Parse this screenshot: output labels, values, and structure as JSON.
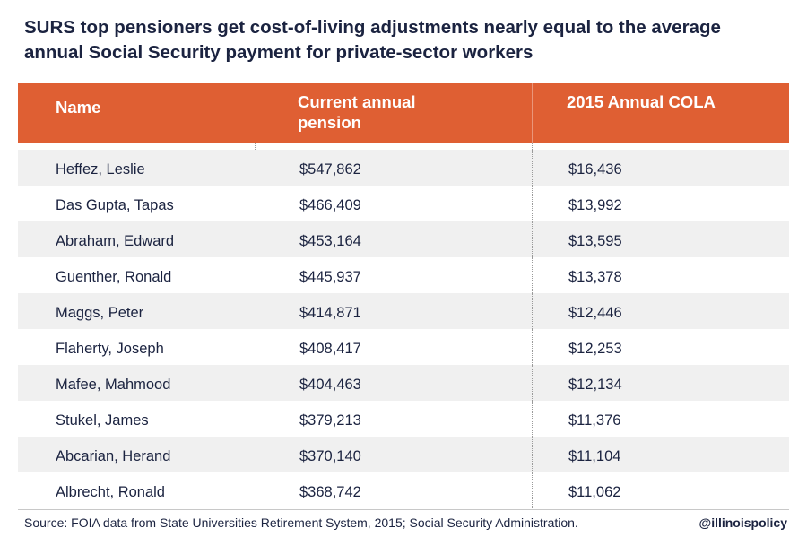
{
  "title_line1": "SURS top pensioners get cost-of-living adjustments nearly equal to the average",
  "title_line2": "annual Social Security payment for private-sector workers",
  "colors": {
    "header_bg": "#df5f33",
    "row_alt": "#f0f0f0",
    "text": "#1b2340"
  },
  "chart_data": {
    "type": "table",
    "columns": [
      {
        "line1": "Name",
        "line2": ""
      },
      {
        "line1": "Current annual",
        "line2": "pension"
      },
      {
        "line1": "2015 Annual COLA",
        "line2": ""
      }
    ],
    "rows": [
      [
        "Heffez, Leslie",
        "$547,862",
        "$16,436"
      ],
      [
        "Das Gupta, Tapas",
        "$466,409",
        "$13,992"
      ],
      [
        "Abraham, Edward",
        "$453,164",
        "$13,595"
      ],
      [
        "Guenther, Ronald",
        "$445,937",
        "$13,378"
      ],
      [
        "Maggs, Peter",
        "$414,871",
        "$12,446"
      ],
      [
        "Flaherty, Joseph",
        "$408,417",
        "$12,253"
      ],
      [
        "Mafee, Mahmood",
        "$404,463",
        "$12,134"
      ],
      [
        "Stukel, James",
        "$379,213",
        "$11,376"
      ],
      [
        "Abcarian, Herand",
        "$370,140",
        "$11,104"
      ],
      [
        "Albrecht, Ronald",
        "$368,742",
        "$11,062"
      ]
    ]
  },
  "footer": {
    "source": "Source: FOIA data from State Universities Retirement System, 2015; Social Security Administration.",
    "handle": "@illinoispolicy"
  }
}
